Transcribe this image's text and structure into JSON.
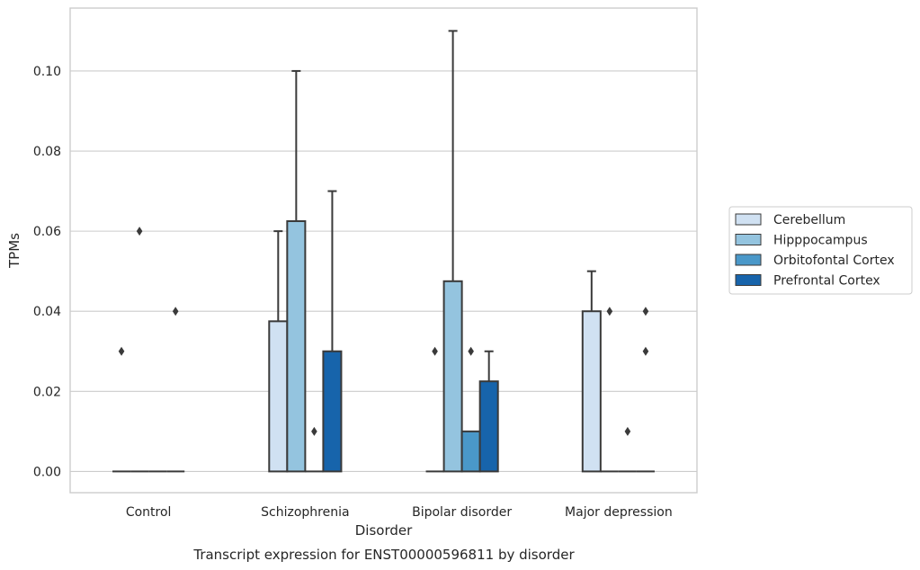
{
  "chart_data": {
    "type": "bar",
    "title": "",
    "caption": "Transcript expression for ENST00000596811 by disorder",
    "xlabel": "Disorder",
    "ylabel": "TPMs",
    "ylim": [
      -0.0053,
      0.1157
    ],
    "yticks": [
      0.0,
      0.02,
      0.04,
      0.06,
      0.08,
      0.1
    ],
    "ytick_labels": [
      "0.00",
      "0.02",
      "0.04",
      "0.06",
      "0.08",
      "0.10"
    ],
    "grid": true,
    "legend_position": "right",
    "categories": [
      "Control",
      "Schizophrenia",
      "Bipolar disorder",
      "Major depression"
    ],
    "series": [
      {
        "name": "Cerebellum",
        "color": "#d0e1f2",
        "values": [
          0.0,
          0.0375,
          0.0,
          0.04
        ],
        "whisker_top": [
          0.0,
          0.06,
          0.0,
          0.05
        ],
        "outliers": [
          [
            0.03
          ],
          [],
          [
            0.03
          ],
          []
        ]
      },
      {
        "name": "Hipppocampus",
        "color": "#94c4df",
        "values": [
          0.0,
          0.0625,
          0.0475,
          0.0
        ],
        "whisker_top": [
          0.0,
          0.1,
          0.11,
          0.0
        ],
        "outliers": [
          [
            0.06
          ],
          [],
          [],
          [
            0.04
          ]
        ]
      },
      {
        "name": "Orbitofontal Cortex",
        "color": "#4a98c9",
        "values": [
          0.0,
          0.0,
          0.01,
          0.0
        ],
        "whisker_top": [
          0.0,
          0.0,
          0.01,
          0.0
        ],
        "outliers": [
          [],
          [
            0.01
          ],
          [
            0.03
          ],
          [
            0.01
          ]
        ]
      },
      {
        "name": "Prefrontal Cortex",
        "color": "#1764ab",
        "values": [
          0.0,
          0.03,
          0.0225,
          0.0
        ],
        "whisker_top": [
          0.0,
          0.07,
          0.03,
          0.0
        ],
        "outliers": [
          [
            0.04
          ],
          [],
          [],
          [
            0.03,
            0.04
          ]
        ]
      }
    ]
  }
}
